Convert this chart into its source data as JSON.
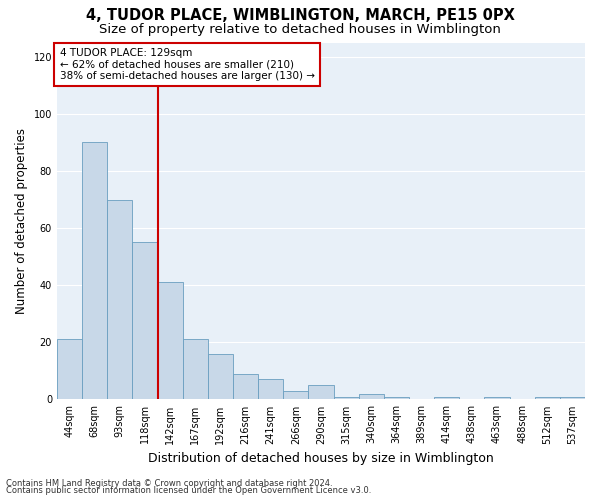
{
  "title": "4, TUDOR PLACE, WIMBLINGTON, MARCH, PE15 0PX",
  "subtitle": "Size of property relative to detached houses in Wimblington",
  "xlabel": "Distribution of detached houses by size in Wimblington",
  "ylabel": "Number of detached properties",
  "categories": [
    "44sqm",
    "68sqm",
    "93sqm",
    "118sqm",
    "142sqm",
    "167sqm",
    "192sqm",
    "216sqm",
    "241sqm",
    "266sqm",
    "290sqm",
    "315sqm",
    "340sqm",
    "364sqm",
    "389sqm",
    "414sqm",
    "438sqm",
    "463sqm",
    "488sqm",
    "512sqm",
    "537sqm"
  ],
  "values": [
    21,
    90,
    70,
    55,
    41,
    21,
    16,
    9,
    7,
    3,
    5,
    1,
    2,
    1,
    0,
    1,
    0,
    1,
    0,
    1,
    1
  ],
  "bar_color": "#c8d8e8",
  "bar_edge_color": "#6a9ec0",
  "vline_x": 3.5,
  "vline_color": "#cc0000",
  "annotation_text": "4 TUDOR PLACE: 129sqm\n← 62% of detached houses are smaller (210)\n38% of semi-detached houses are larger (130) →",
  "annotation_box_color": "#ffffff",
  "annotation_box_edge_color": "#cc0000",
  "ylim": [
    0,
    125
  ],
  "yticks": [
    0,
    20,
    40,
    60,
    80,
    100,
    120
  ],
  "background_color": "#e8f0f8",
  "footer1": "Contains HM Land Registry data © Crown copyright and database right 2024.",
  "footer2": "Contains public sector information licensed under the Open Government Licence v3.0.",
  "title_fontsize": 10.5,
  "subtitle_fontsize": 9.5,
  "xlabel_fontsize": 9,
  "ylabel_fontsize": 8.5,
  "annotation_fontsize": 7.5,
  "tick_fontsize": 7,
  "footer_fontsize": 6
}
